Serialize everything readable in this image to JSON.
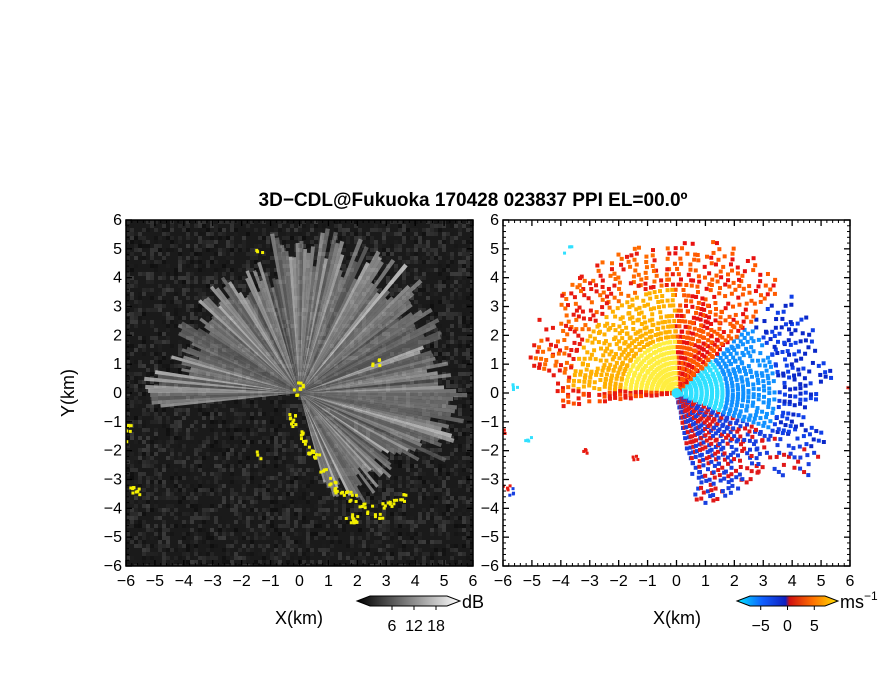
{
  "title": "3D−CDL@Fukuoka 170428 023837 PPI EL=00.0º",
  "chart_data": [
    {
      "type": "heatmap",
      "name": "backscatter-intensity",
      "xlabel": "X(km)",
      "ylabel": "Y(km)",
      "xlim": [
        -6,
        6
      ],
      "ylim": [
        -6,
        6
      ],
      "xticks": [
        "−6",
        "−5",
        "−4",
        "−3",
        "−2",
        "−1",
        "0",
        "1",
        "2",
        "3",
        "4",
        "5",
        "6"
      ],
      "yticks": [
        "−6",
        "−5",
        "−4",
        "−3",
        "−2",
        "−1",
        "0",
        "1",
        "2",
        "3",
        "4",
        "5",
        "6"
      ],
      "colorbar": {
        "label": "dB",
        "ticks": [
          "6",
          "12",
          "18"
        ],
        "tick_values": [
          6,
          12,
          18
        ],
        "range": [
          0,
          21
        ]
      },
      "colors": {
        "background": "#1a1a1a",
        "beam": "#e8e8e8",
        "hard_target": "#f4f000"
      }
    },
    {
      "type": "heatmap",
      "name": "radial-velocity",
      "xlabel": "X(km)",
      "xlim": [
        -6,
        6
      ],
      "ylim": [
        -6,
        6
      ],
      "xticks": [
        "−6",
        "−5",
        "−4",
        "−3",
        "−2",
        "−1",
        "0",
        "1",
        "2",
        "3",
        "4",
        "5",
        "6"
      ],
      "yticks": [
        "−6",
        "−5",
        "−4",
        "−3",
        "−2",
        "−1",
        "0",
        "1",
        "2",
        "3",
        "4",
        "5",
        "6"
      ],
      "colorbar": {
        "label": "ms",
        "label_sup": "−1",
        "ticks": [
          "−5",
          "0",
          "5"
        ],
        "tick_values": [
          -5,
          0,
          5
        ],
        "range": [
          -7,
          7
        ]
      },
      "colors": {
        "negative_far": "#0a28d8",
        "negative_near": "#00e8f0",
        "positive_near": "#ffe000",
        "positive_far": "#e80000",
        "fill": "#ffffff"
      }
    }
  ]
}
